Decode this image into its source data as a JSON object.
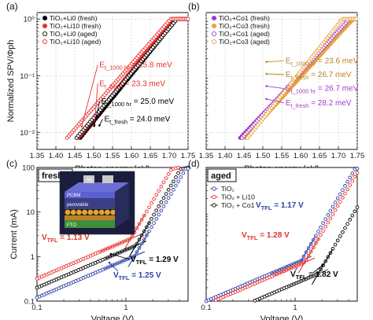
{
  "chart_data": [
    {
      "panel": "(a)",
      "type": "scatter",
      "xlabel": "Photon energy (eV)",
      "ylabel": "Normalized SPV/Φph",
      "xlim": [
        1.35,
        1.75
      ],
      "ylim": [
        0.005,
        1.3
      ],
      "yscale": "log",
      "xticks": [
        "1.35",
        "1.40",
        "1.45",
        "1.50",
        "1.55",
        "1.60",
        "1.65",
        "1.70",
        "1.75"
      ],
      "yticks": [
        "10⁻²",
        "10⁻¹",
        "10⁰"
      ],
      "legend": {
        "position": "top-left"
      },
      "series": [
        {
          "name": "TiO₂+Li0 (fresh)",
          "color": "#000000",
          "marker": "filled",
          "onset": 1.465,
          "et_mev": 24.0
        },
        {
          "name": "TiO₂+Li10 (fresh)",
          "color": "#e8312e",
          "marker": "filled",
          "onset": 1.46,
          "et_mev": 23.3
        },
        {
          "name": "TiO₂+Li0 (aged)",
          "color": "#000000",
          "marker": "open",
          "onset": 1.455,
          "et_mev": 25.0
        },
        {
          "name": "TiO₂+Li10 (aged)",
          "color": "#e8312e",
          "marker": "open",
          "onset": 1.43,
          "et_mev": 25.8
        }
      ],
      "annotations": [
        {
          "prefix": "E",
          "sub": "t_1000 hr",
          "value": " = 25.8 meV",
          "color": "#e8312e",
          "x": 1.515,
          "y": 0.14
        },
        {
          "prefix": "E",
          "sub": "t_fresh",
          "value": " = 23.3 meV",
          "color": "#e8312e",
          "x": 1.515,
          "y": 0.066
        },
        {
          "prefix": "E",
          "sub": "t_1000 hr",
          "value": " = 25.0 meV",
          "color": "#000000",
          "x": 1.52,
          "y": 0.032
        },
        {
          "prefix": "E",
          "sub": "t_fresh",
          "value": " = 24.0 meV",
          "color": "#000000",
          "x": 1.528,
          "y": 0.0155
        }
      ]
    },
    {
      "panel": "(b)",
      "type": "scatter",
      "xlabel": "Photon energy (eV)",
      "xlim": [
        1.35,
        1.75
      ],
      "ylim": [
        0.005,
        1.3
      ],
      "yscale": "log",
      "xticks": [
        "1.35",
        "1.40",
        "1.45",
        "1.50",
        "1.55",
        "1.60",
        "1.65",
        "1.70",
        "1.75"
      ],
      "legend": {
        "position": "top-left"
      },
      "series": [
        {
          "name": "TiO₂+Co1 (fresh)",
          "color": "#a43cc8",
          "marker": "filled",
          "onset": 1.44,
          "et_mev": 28.2
        },
        {
          "name": "TiO₂+Co3 (fresh)",
          "color": "#e9a23b",
          "marker": "filled",
          "onset": 1.455,
          "et_mev": 26.7
        },
        {
          "name": "TiO₂+Co1 (aged)",
          "color": "#a43cc8",
          "marker": "open",
          "onset": 1.445,
          "et_mev": 26.7
        },
        {
          "name": "TiO₂+Co3 (aged)",
          "color": "#e9a23b",
          "marker": "open",
          "onset": 1.46,
          "et_mev": 23.6
        }
      ],
      "annotations": [
        {
          "prefix": "E",
          "sub": "t_1000 hr",
          "value": " = 23.6 meV",
          "color": "#b8862b",
          "x": 1.56,
          "y": 0.165
        },
        {
          "prefix": "E",
          "sub": "t_fresh",
          "value": " = 26.7 meV",
          "color": "#b8862b",
          "x": 1.56,
          "y": 0.095
        },
        {
          "prefix": "E",
          "sub": "t_1000 hr",
          "value": " = 26.7 meV",
          "color": "#a43cc8",
          "x": 1.56,
          "y": 0.054
        },
        {
          "prefix": "E",
          "sub": "t_fresh",
          "value": " = 28.2 meV",
          "color": "#a43cc8",
          "x": 1.56,
          "y": 0.03
        }
      ]
    },
    {
      "panel": "(c)",
      "type": "scatter",
      "box_label": "fresh",
      "xlabel": "Voltage (V)",
      "ylabel": "Current (mA)",
      "xlim": [
        0.1,
        5
      ],
      "ylim": [
        0.1,
        100
      ],
      "xscale": "log",
      "yscale": "log",
      "xticks": [
        "0.1",
        "1"
      ],
      "yticks": [
        "0.1",
        "1",
        "10",
        "100"
      ],
      "series": [
        {
          "color": "#e8312e",
          "i0": 0.32,
          "vtfl": 1.13
        },
        {
          "color": "#000000",
          "i0": 0.2,
          "vtfl": 1.29
        },
        {
          "color": "#2f3fa6",
          "i0": 0.12,
          "vtfl": 1.25
        }
      ],
      "inset": {
        "layers": [
          "Ag",
          "PCBM",
          "perovskite",
          "FTO"
        ]
      },
      "annotations": [
        {
          "prefix": "V",
          "sub": "TFL",
          "value": " = 1.13 V",
          "color": "#e8312e"
        },
        {
          "prefix": "V",
          "sub": "TFL",
          "value": " = 1.29 V",
          "color": "#000000"
        },
        {
          "prefix": "V",
          "sub": "TFL",
          "value": " = 1.25 V",
          "color": "#2f3fa6"
        }
      ]
    },
    {
      "panel": "(d)",
      "type": "scatter",
      "box_label": "aged",
      "xlabel": "Voltage (V)",
      "xlim": [
        0.1,
        5
      ],
      "ylim": [
        0.1,
        100
      ],
      "xscale": "log",
      "yscale": "log",
      "xticks": [
        "0.1",
        "1"
      ],
      "legend": {
        "position": "top-left"
      },
      "series": [
        {
          "name": "TiO₂",
          "color": "#2f3fa6",
          "i0": 0.1,
          "vtfl": 1.17
        },
        {
          "name": "TiO₂ + Li10",
          "color": "#e8312e",
          "i0": 0.085,
          "vtfl": 1.28
        },
        {
          "name": "TiO₂ + Co1",
          "color": "#000000",
          "i0": 0.035,
          "vtfl": 1.82
        }
      ],
      "annotations": [
        {
          "prefix": "V",
          "sub": "TFL",
          "value": " = 1.17 V",
          "color": "#2f3fa6"
        },
        {
          "prefix": "V",
          "sub": "TFL",
          "value": " = 1.28 V",
          "color": "#e8312e"
        },
        {
          "prefix": "V",
          "sub": "TFL",
          "value": " = 1.82 V",
          "color": "#000000"
        }
      ]
    }
  ]
}
